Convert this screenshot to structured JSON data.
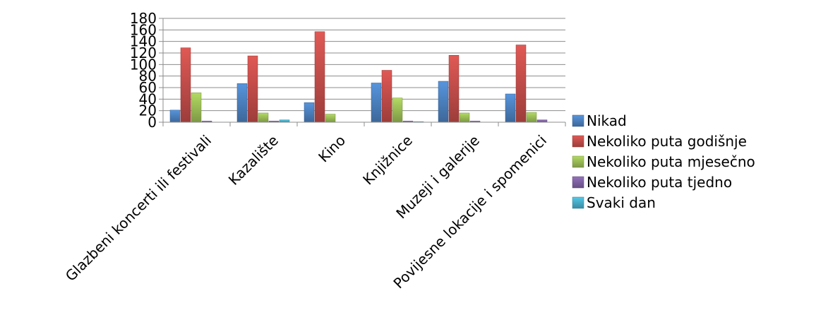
{
  "chart_data": {
    "type": "bar",
    "title": "",
    "xlabel": "",
    "ylabel": "",
    "ylim": [
      0,
      180
    ],
    "yticks": [
      0,
      20,
      40,
      60,
      80,
      100,
      120,
      140,
      160,
      180
    ],
    "grid": true,
    "legend_position": "right",
    "categories": [
      "Glazbeni koncerti ili festivali",
      "Kazalište",
      "Kino",
      "Knjižnice",
      "Muzeji i galerije",
      "Povijesne lokacije i spomenici"
    ],
    "series": [
      {
        "name": "Nikad",
        "color": "#4a7ebb",
        "values": [
          21,
          67,
          34,
          68,
          71,
          49
        ]
      },
      {
        "name": "Nekoliko puta godišnje",
        "color": "#be4b48",
        "values": [
          129,
          115,
          157,
          90,
          116,
          134
        ]
      },
      {
        "name": "Nekoliko puta mjesečno",
        "color": "#98b954",
        "values": [
          51,
          16,
          14,
          42,
          16,
          17
        ]
      },
      {
        "name": "Nekoliko puta tjedno",
        "color": "#7d60a0",
        "values": [
          2,
          2,
          0,
          2,
          2,
          4
        ]
      },
      {
        "name": "Svaki dan",
        "color": "#46aac5",
        "values": [
          0,
          4,
          0,
          1,
          0,
          0
        ]
      }
    ]
  }
}
